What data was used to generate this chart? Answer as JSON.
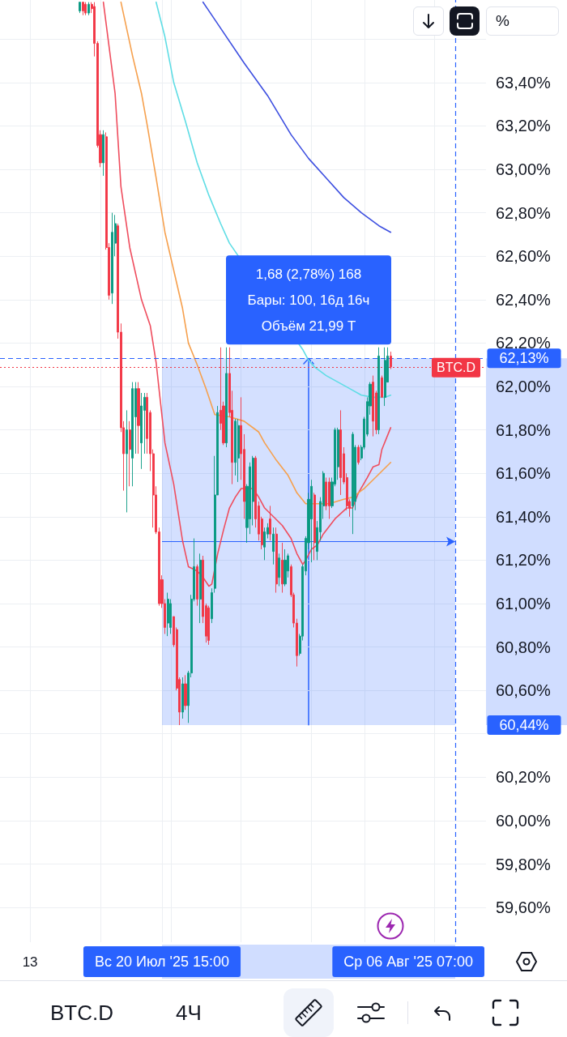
{
  "chart_data": {
    "type": "candlestick",
    "title": "BTC.D",
    "subtitle": "4Ч",
    "x": [
      "2025-07-15T23:00",
      "2025-07-16T03:00",
      "2025-07-16T07:00",
      "2025-07-16T11:00",
      "2025-07-16T15:00",
      "2025-07-16T19:00",
      "2025-07-16T23:00",
      "2025-07-17T03:00",
      "2025-07-17T07:00",
      "2025-07-17T11:00",
      "2025-07-17T15:00",
      "2025-07-17T19:00",
      "2025-07-17T23:00",
      "2025-07-18T03:00",
      "2025-07-18T07:00",
      "2025-07-18T11:00",
      "2025-07-18T15:00",
      "2025-07-18T19:00",
      "2025-07-18T23:00",
      "2025-07-19T03:00",
      "2025-07-19T07:00",
      "2025-07-19T11:00",
      "2025-07-19T15:00",
      "2025-07-19T19:00",
      "2025-07-19T23:00",
      "2025-07-20T03:00",
      "2025-07-20T07:00",
      "2025-07-20T11:00",
      "2025-07-20T15:00",
      "2025-07-20T19:00",
      "2025-07-20T23:00",
      "2025-07-21T03:00",
      "2025-07-21T07:00",
      "2025-07-21T11:00",
      "2025-07-21T15:00",
      "2025-07-21T19:00",
      "2025-07-21T23:00",
      "2025-07-22T03:00",
      "2025-07-22T07:00",
      "2025-07-22T11:00",
      "2025-07-22T15:00",
      "2025-07-22T19:00",
      "2025-07-22T23:00",
      "2025-07-23T03:00",
      "2025-07-23T07:00",
      "2025-07-23T11:00",
      "2025-07-23T15:00",
      "2025-07-23T19:00",
      "2025-07-23T23:00",
      "2025-07-24T03:00",
      "2025-07-24T07:00",
      "2025-07-24T11:00",
      "2025-07-24T15:00",
      "2025-07-24T19:00",
      "2025-07-24T23:00",
      "2025-07-25T03:00",
      "2025-07-25T07:00",
      "2025-07-25T11:00",
      "2025-07-25T15:00",
      "2025-07-25T19:00",
      "2025-07-25T23:00",
      "2025-07-26T03:00",
      "2025-07-26T07:00",
      "2025-07-26T11:00",
      "2025-07-26T15:00",
      "2025-07-26T19:00",
      "2025-07-26T23:00",
      "2025-07-27T03:00",
      "2025-07-27T07:00",
      "2025-07-27T11:00",
      "2025-07-27T15:00",
      "2025-07-27T19:00",
      "2025-07-27T23:00",
      "2025-07-28T03:00",
      "2025-07-28T07:00",
      "2025-07-28T11:00",
      "2025-07-28T15:00",
      "2025-07-28T19:00",
      "2025-07-28T23:00",
      "2025-07-29T03:00",
      "2025-07-29T07:00",
      "2025-07-29T11:00",
      "2025-07-29T15:00",
      "2025-07-29T19:00",
      "2025-07-29T23:00",
      "2025-07-30T03:00",
      "2025-07-30T07:00",
      "2025-07-30T11:00",
      "2025-07-30T15:00",
      "2025-07-30T19:00",
      "2025-07-30T23:00",
      "2025-07-31T03:00",
      "2025-07-31T07:00",
      "2025-07-31T11:00",
      "2025-07-31T15:00",
      "2025-07-31T19:00",
      "2025-07-31T23:00",
      "2025-08-01T03:00",
      "2025-08-01T07:00",
      "2025-08-01T11:00",
      "2025-08-01T15:00",
      "2025-08-01T19:00",
      "2025-08-01T23:00",
      "2025-08-02T03:00",
      "2025-08-02T07:00",
      "2025-08-02T11:00",
      "2025-08-02T15:00"
    ],
    "ohlc": [
      [
        63.73,
        63.77,
        63.72,
        63.77
      ],
      [
        63.77,
        63.77,
        63.71,
        63.73
      ],
      [
        63.76,
        63.77,
        63.71,
        63.72
      ],
      [
        63.72,
        63.77,
        63.71,
        63.76
      ],
      [
        63.76,
        63.77,
        63.72,
        63.74
      ],
      [
        63.75,
        63.77,
        63.52,
        63.58
      ],
      [
        63.58,
        63.59,
        63.1,
        63.11
      ],
      [
        63.16,
        63.18,
        63.01,
        63.03
      ],
      [
        63.03,
        63.18,
        62.97,
        63.16
      ],
      [
        63.15,
        63.17,
        62.63,
        62.64
      ],
      [
        62.64,
        62.66,
        62.4,
        62.42
      ],
      [
        62.43,
        62.8,
        62.38,
        62.71
      ],
      [
        62.66,
        62.79,
        62.6,
        62.75
      ],
      [
        62.74,
        62.75,
        62.22,
        62.25
      ],
      [
        62.25,
        62.29,
        61.79,
        61.81
      ],
      [
        61.81,
        61.84,
        61.52,
        61.69
      ],
      [
        61.69,
        61.89,
        61.42,
        61.8
      ],
      [
        61.8,
        61.84,
        61.54,
        61.71
      ],
      [
        61.67,
        62.02,
        61.54,
        61.99
      ],
      [
        61.86,
        62.02,
        61.69,
        61.99
      ],
      [
        61.99,
        62.02,
        61.69,
        61.82
      ],
      [
        61.74,
        61.97,
        61.62,
        61.91
      ],
      [
        61.89,
        61.97,
        61.69,
        61.95
      ],
      [
        61.95,
        61.97,
        61.69,
        61.76
      ],
      [
        61.88,
        61.89,
        61.61,
        61.69
      ],
      [
        61.69,
        61.71,
        61.35,
        61.5
      ],
      [
        61.5,
        61.54,
        61.32,
        61.33
      ],
      [
        61.33,
        61.35,
        60.99,
        61.0
      ],
      [
        61.11,
        61.13,
        60.98,
        61.0
      ],
      [
        61.0,
        61.02,
        60.86,
        60.89
      ],
      [
        60.91,
        61.05,
        60.85,
        61.02
      ],
      [
        60.89,
        61.02,
        60.86,
        61.0
      ],
      [
        60.94,
        60.94,
        60.8,
        60.81
      ],
      [
        60.88,
        60.89,
        60.6,
        60.61
      ],
      [
        60.65,
        60.66,
        60.44,
        60.5
      ],
      [
        60.5,
        60.66,
        60.47,
        60.63
      ],
      [
        60.63,
        60.67,
        60.51,
        60.53
      ],
      [
        60.53,
        60.69,
        60.45,
        60.68
      ],
      [
        60.68,
        61.04,
        60.66,
        61.02
      ],
      [
        61.02,
        61.3,
        61.01,
        61.17
      ],
      [
        61.17,
        61.18,
        60.99,
        61.02
      ],
      [
        61.02,
        61.23,
        60.91,
        61.2
      ],
      [
        61.2,
        61.22,
        60.91,
        60.94
      ],
      [
        60.99,
        61.0,
        60.82,
        60.85
      ],
      [
        60.98,
        60.99,
        60.81,
        60.83
      ],
      [
        60.93,
        61.07,
        60.91,
        61.05
      ],
      [
        61.07,
        61.68,
        61.05,
        61.5
      ],
      [
        61.5,
        61.91,
        61.5,
        61.88
      ],
      [
        61.89,
        62.18,
        61.8,
        61.83
      ],
      [
        61.91,
        61.93,
        61.73,
        61.74
      ],
      [
        61.74,
        62.18,
        61.72,
        62.06
      ],
      [
        62.06,
        62.18,
        61.86,
        61.88
      ],
      [
        61.89,
        61.98,
        61.55,
        61.65
      ],
      [
        61.65,
        61.85,
        61.59,
        61.84
      ],
      [
        61.67,
        61.85,
        61.56,
        61.82
      ],
      [
        61.82,
        61.95,
        61.57,
        61.69
      ],
      [
        61.71,
        61.78,
        61.39,
        61.47
      ],
      [
        61.35,
        61.55,
        61.28,
        61.54
      ],
      [
        61.39,
        61.65,
        61.32,
        61.63
      ],
      [
        61.47,
        61.68,
        61.36,
        61.67
      ],
      [
        61.67,
        61.68,
        61.35,
        61.39
      ],
      [
        61.45,
        61.47,
        61.29,
        61.32
      ],
      [
        61.39,
        61.4,
        61.25,
        61.27
      ],
      [
        61.26,
        61.35,
        61.2,
        61.33
      ],
      [
        61.32,
        61.37,
        61.3,
        61.35
      ],
      [
        61.39,
        61.45,
        61.29,
        61.32
      ],
      [
        61.24,
        61.35,
        61.18,
        61.32
      ],
      [
        61.32,
        61.35,
        61.05,
        61.09
      ],
      [
        61.12,
        61.23,
        61.08,
        61.21
      ],
      [
        61.2,
        61.28,
        61.05,
        61.09
      ],
      [
        61.09,
        61.25,
        61.08,
        61.2
      ],
      [
        61.15,
        61.23,
        61.12,
        61.22
      ],
      [
        61.17,
        61.18,
        61.03,
        61.04
      ],
      [
        61.04,
        61.05,
        60.89,
        60.91
      ],
      [
        60.91,
        60.93,
        60.71,
        60.76
      ],
      [
        60.77,
        60.86,
        60.76,
        60.85
      ],
      [
        60.85,
        61.18,
        60.83,
        61.17
      ],
      [
        61.15,
        61.31,
        61.13,
        61.3
      ],
      [
        61.28,
        61.51,
        61.25,
        61.48
      ],
      [
        61.39,
        61.57,
        61.19,
        61.54
      ],
      [
        61.5,
        61.51,
        61.2,
        61.28
      ],
      [
        61.24,
        61.38,
        61.2,
        61.35
      ],
      [
        61.33,
        61.49,
        61.29,
        61.47
      ],
      [
        61.45,
        61.61,
        61.39,
        61.6
      ],
      [
        61.56,
        61.58,
        61.43,
        61.45
      ],
      [
        61.56,
        61.58,
        61.39,
        61.45
      ],
      [
        61.45,
        61.58,
        61.44,
        61.56
      ],
      [
        61.55,
        61.81,
        61.54,
        61.8
      ],
      [
        61.63,
        61.81,
        61.57,
        61.8
      ],
      [
        61.8,
        61.89,
        61.5,
        61.58
      ],
      [
        61.69,
        61.72,
        61.55,
        61.56
      ],
      [
        61.58,
        61.6,
        61.43,
        61.45
      ],
      [
        61.47,
        61.48,
        61.4,
        61.44
      ],
      [
        61.45,
        61.79,
        61.32,
        61.78
      ],
      [
        61.47,
        61.73,
        61.43,
        61.72
      ],
      [
        61.72,
        61.73,
        61.64,
        61.65
      ],
      [
        61.67,
        61.73,
        61.66,
        61.72
      ],
      [
        61.72,
        61.86,
        61.71,
        61.85
      ],
      [
        61.78,
        61.95,
        61.77,
        61.93
      ],
      [
        61.91,
        62.02,
        61.87,
        62.01
      ],
      [
        62.02,
        62.05,
        61.77,
        61.84
      ],
      [
        61.97,
        61.98,
        61.78,
        61.8
      ],
      [
        61.8,
        62.18,
        61.78,
        62.14
      ],
      [
        62.04,
        62.05,
        61.95,
        61.95
      ],
      [
        61.95,
        62.18,
        61.91,
        62.12
      ],
      [
        62.02,
        62.18,
        62.02,
        62.14
      ],
      [
        62.14,
        62.16,
        62.08,
        62.09
      ]
    ],
    "colors": [
      "#089981",
      "#f23645",
      "#f23645",
      "#089981",
      "#f23645",
      "#f23645",
      "#f23645",
      "#f23645",
      "#089981",
      "#f23645",
      "#f23645",
      "#089981",
      "#089981",
      "#f23645",
      "#f23645",
      "#f23645",
      "#089981",
      "#f23645",
      "#089981",
      "#089981",
      "#f23645",
      "#089981",
      "#089981",
      "#f23645",
      "#f23645",
      "#f23645",
      "#f23645",
      "#f23645",
      "#f23645",
      "#f23645",
      "#089981",
      "#089981",
      "#f23645",
      "#f23645",
      "#f23645",
      "#089981",
      "#f23645",
      "#089981",
      "#089981",
      "#089981",
      "#f23645",
      "#089981",
      "#f23645",
      "#f23645",
      "#f23645",
      "#089981",
      "#089981",
      "#089981",
      "#f23645",
      "#f23645",
      "#089981",
      "#f23645",
      "#f23645",
      "#089981",
      "#089981",
      "#f23645",
      "#f23645",
      "#089981",
      "#089981",
      "#089981",
      "#f23645",
      "#f23645",
      "#f23645",
      "#089981",
      "#089981",
      "#f23645",
      "#089981",
      "#f23645",
      "#089981",
      "#f23645",
      "#089981",
      "#089981",
      "#f23645",
      "#f23645",
      "#f23645",
      "#089981",
      "#089981",
      "#089981",
      "#089981",
      "#089981",
      "#f23645",
      "#089981",
      "#089981",
      "#089981",
      "#f23645",
      "#f23645",
      "#089981",
      "#089981",
      "#089981",
      "#f23645",
      "#f23645",
      "#f23645",
      "#f23645",
      "#089981",
      "#089981",
      "#f23645",
      "#089981",
      "#089981",
      "#089981",
      "#089981",
      "#f23645",
      "#f23645",
      "#089981",
      "#f23645",
      "#089981",
      "#089981",
      "#f23645"
    ],
    "series": [
      {
        "type": "line",
        "color": "#ef4d5e",
        "x": [
          "2025-07-17T07:00",
          "2025-07-17T23:00",
          "2025-07-18T07:00",
          "2025-07-18T19:00",
          "2025-07-19T11:00",
          "2025-07-19T23:00",
          "2025-07-20T07:00",
          "2025-07-20T19:00",
          "2025-07-21T07:00",
          "2025-07-21T19:00",
          "2025-07-22T03:00",
          "2025-07-22T15:00",
          "2025-07-22T23:00",
          "2025-07-23T07:00",
          "2025-07-23T11:00",
          "2025-07-23T19:00",
          "2025-07-24T03:00",
          "2025-07-24T11:00",
          "2025-07-24T19:00",
          "2025-07-25T03:00",
          "2025-07-25T19:00",
          "2025-07-26T03:00",
          "2025-07-26T11:00",
          "2025-07-26T23:00",
          "2025-07-27T11:00",
          "2025-07-27T23:00",
          "2025-07-28T07:00",
          "2025-07-28T15:00",
          "2025-07-28T19:00",
          "2025-07-29T03:00",
          "2025-07-29T11:00",
          "2025-07-29T19:00",
          "2025-07-30T11:00",
          "2025-07-31T03:00",
          "2025-07-31T11:00",
          "2025-07-31T19:00",
          "2025-08-01T07:00",
          "2025-08-01T15:00",
          "2025-08-01T23:00",
          "2025-08-02T03:00",
          "2025-08-02T15:00"
        ],
        "values": [
          63.77,
          63.35,
          62.92,
          62.64,
          62.4,
          62.28,
          62.11,
          61.74,
          61.55,
          61.29,
          61.17,
          61.15,
          61.12,
          61.08,
          61.09,
          61.23,
          61.34,
          61.44,
          61.49,
          61.53,
          61.53,
          61.49,
          61.44,
          61.4,
          61.36,
          61.3,
          61.23,
          61.18,
          61.2,
          61.25,
          61.27,
          61.32,
          61.39,
          61.44,
          61.44,
          61.51,
          61.58,
          61.63,
          61.64,
          61.71,
          61.81
        ]
      },
      {
        "type": "line",
        "color": "#f6a04d",
        "x": [
          "2025-07-18T07:00",
          "2025-07-18T23:00",
          "2025-07-19T11:00",
          "2025-07-19T19:00",
          "2025-07-20T07:00",
          "2025-07-20T19:00",
          "2025-07-21T19:00",
          "2025-07-22T03:00",
          "2025-07-22T15:00",
          "2025-07-23T03:00",
          "2025-07-23T15:00",
          "2025-07-24T11:00",
          "2025-07-25T07:00",
          "2025-07-26T03:00",
          "2025-07-26T11:00",
          "2025-07-27T03:00",
          "2025-07-27T19:00",
          "2025-07-28T07:00",
          "2025-07-28T19:00",
          "2025-07-29T07:00",
          "2025-07-30T03:00",
          "2025-07-30T23:00",
          "2025-07-31T11:00",
          "2025-08-01T03:00",
          "2025-08-01T15:00",
          "2025-08-02T03:00",
          "2025-08-02T15:00"
        ],
        "values": [
          63.77,
          63.52,
          63.35,
          63.2,
          62.96,
          62.71,
          62.36,
          62.2,
          62.1,
          61.99,
          61.87,
          61.86,
          61.84,
          61.79,
          61.74,
          61.66,
          61.59,
          61.51,
          61.46,
          61.46,
          61.46,
          61.48,
          61.49,
          61.53,
          61.57,
          61.61,
          61.65
        ]
      },
      {
        "type": "line",
        "color": "#5fdde5",
        "x": [
          "2025-07-20T07:00",
          "2025-07-20T19:00",
          "2025-07-21T07:00",
          "2025-07-21T23:00",
          "2025-07-22T15:00",
          "2025-07-23T07:00",
          "2025-07-23T23:00",
          "2025-07-24T11:00",
          "2025-07-28T15:00",
          "2025-07-28T23:00",
          "2025-07-29T07:00",
          "2025-07-29T23:00",
          "2025-07-30T15:00",
          "2025-07-31T07:00",
          "2025-07-31T23:00",
          "2025-08-01T15:00",
          "2025-08-02T07:00",
          "2025-08-02T15:00"
        ],
        "values": [
          63.77,
          63.61,
          63.4,
          63.22,
          63.03,
          62.88,
          62.75,
          62.66,
          62.17,
          62.12,
          62.09,
          62.05,
          62.02,
          61.99,
          61.96,
          61.95,
          61.95,
          61.96
        ]
      },
      {
        "type": "line",
        "color": "#3d4fe0",
        "x": [
          "2025-07-22T23:00",
          "2025-07-23T23:00",
          "2025-07-25T07:00",
          "2025-07-26T15:00",
          "2025-07-27T23:00",
          "2025-07-28T23:00",
          "2025-07-29T23:00",
          "2025-07-30T23:00",
          "2025-07-31T23:00",
          "2025-08-01T23:00",
          "2025-08-02T15:00"
        ],
        "values": [
          63.77,
          63.65,
          63.49,
          63.34,
          63.16,
          63.05,
          62.96,
          62.87,
          62.8,
          62.74,
          62.71
        ]
      }
    ],
    "xlim": [
      "2025-07-11T10:00",
      "2025-08-08T01:00"
    ],
    "xticks": [
      {
        "value": "2025-07-13T03:00",
        "label": "13"
      },
      {
        "value": "2025-07-17T03:00",
        "label": null
      },
      {
        "value": "2025-07-20T15:00",
        "label": "Вс 20 Июл '25 15:00"
      },
      {
        "value": "2025-07-21T03:00",
        "label": null
      },
      {
        "value": "2025-07-25T03:00",
        "label": null
      },
      {
        "value": "2025-07-29T03:00",
        "label": null
      },
      {
        "value": "2025-08-01T03:00",
        "label": null
      },
      {
        "value": "2025-08-05T03:00",
        "label": null
      }
    ],
    "ylim": [
      59.44,
      63.78
    ],
    "yticks": [
      {
        "value": 59.6,
        "label": "59,60%"
      },
      {
        "value": 59.8,
        "label": "59,80%"
      },
      {
        "value": 60,
        "label": "60,00%"
      },
      {
        "value": 60.2,
        "label": "60,20%"
      },
      {
        "value": 60.4,
        "label": null
      },
      {
        "value": 60.6,
        "label": "60,60%"
      },
      {
        "value": 60.8,
        "label": "60,80%"
      },
      {
        "value": 61,
        "label": "61,00%"
      },
      {
        "value": 61.2,
        "label": "61,20%"
      },
      {
        "value": 61.4,
        "label": "61,40%"
      },
      {
        "value": 61.6,
        "label": "61,60%"
      },
      {
        "value": 61.8,
        "label": "61,80%"
      },
      {
        "value": 62,
        "label": "62,00%"
      },
      {
        "value": 62.2,
        "label": "62,20%"
      },
      {
        "value": 62.4,
        "label": "62,40%"
      },
      {
        "value": 62.6,
        "label": "62,60%"
      },
      {
        "value": 62.8,
        "label": "62,80%"
      },
      {
        "value": 63,
        "label": "63,00%"
      },
      {
        "value": 63.2,
        "label": "63,20%"
      },
      {
        "value": 63.4,
        "label": "63,40%"
      },
      {
        "value": 63.6,
        "label": null
      }
    ],
    "bands": [
      {
        "axis": "x",
        "from": "2025-07-20T15:00",
        "to": "2025-08-06T07:00",
        "color": "#2962ff"
      }
    ],
    "ref_lines": [
      {
        "axis": "y",
        "value": 62.13,
        "label": "62,13%",
        "color": "#2962ff",
        "line_style": "dashed"
      },
      {
        "axis": "y",
        "value": 62.09,
        "label": "BTC.D",
        "color": "#f23645",
        "line_style": "dotted"
      },
      {
        "axis": "x",
        "value": "2025-08-06T07:00",
        "label": "Ср 06 Авг '25 07:00",
        "color": "#2962ff",
        "line_style": "dashed"
      }
    ],
    "annotations": [
      "1,68 (2,78%) 168",
      "Бары: 100, 16д 16ч",
      "Объём 21,99 T",
      "%",
      "60,44%"
    ],
    "grid": true,
    "marker": "none"
  }
}
